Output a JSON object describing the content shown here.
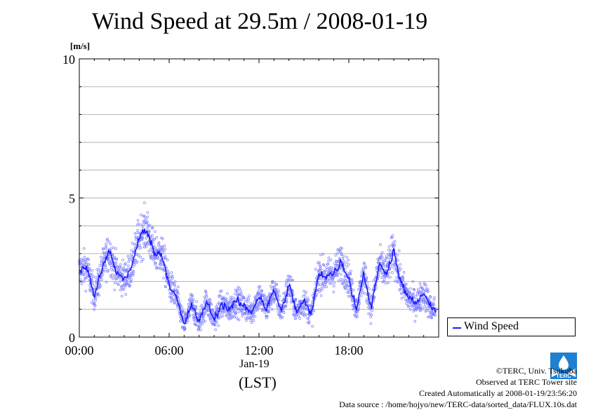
{
  "title": "Wind Speed at 29.5m / 2008-01-19",
  "chart_data": {
    "type": "line",
    "title": "Wind Speed at 29.5m / 2008-01-19",
    "ylabel": "[m/s]",
    "xlabel": "(LST)",
    "x_sublabel": "Jan-19",
    "ylim": [
      0,
      10
    ],
    "y_ticks": [
      "0",
      "5",
      "10"
    ],
    "xlim": [
      "00:00",
      "24:00"
    ],
    "x_ticks": [
      "00:00",
      "06:00",
      "12:00",
      "18:00"
    ],
    "grid": true,
    "legend_position": "right",
    "series": [
      {
        "name": "Wind Speed",
        "style": "line with scatter points",
        "color": "#1a1aff",
        "point_color": "#8080ff",
        "x_hours": [
          0,
          0.5,
          1,
          1.5,
          2,
          2.5,
          3,
          3.5,
          4,
          4.5,
          5,
          5.5,
          6,
          6.5,
          7,
          7.5,
          8,
          8.5,
          9,
          9.5,
          10,
          10.5,
          11,
          11.5,
          12,
          12.5,
          13,
          13.5,
          14,
          14.5,
          15,
          15.5,
          16,
          16.5,
          17,
          17.5,
          18,
          18.5,
          19,
          19.5,
          20,
          20.5,
          21,
          21.5,
          22,
          22.5,
          23,
          23.5
        ],
        "values": [
          2.4,
          2.5,
          1.5,
          2.4,
          3.1,
          2.3,
          2.1,
          2.5,
          3.6,
          3.9,
          3.0,
          3.0,
          1.9,
          1.4,
          0.4,
          1.2,
          0.5,
          1.3,
          0.6,
          1.2,
          1.0,
          1.3,
          1.1,
          0.9,
          1.5,
          1.0,
          1.7,
          0.9,
          1.9,
          0.9,
          1.3,
          0.8,
          2.3,
          2.2,
          2.3,
          2.7,
          2.1,
          1.0,
          2.3,
          1.0,
          2.6,
          2.3,
          3.1,
          1.9,
          1.4,
          1.2,
          1.6,
          1.0
        ]
      }
    ]
  },
  "legend": {
    "label": "Wind Speed"
  },
  "credits": {
    "copyright": "©TERC, Univ. Tsukuba",
    "observed": "Observed at TERC Tower site",
    "created": "Created Automatically at 2008-01-19/23:56:20",
    "source": "Data source : /home/hojyo/new/TERC-data/sorted_data/FLUX.10s.dat"
  },
  "logo": {
    "text": "TERC",
    "color": "#1f7fd0"
  }
}
